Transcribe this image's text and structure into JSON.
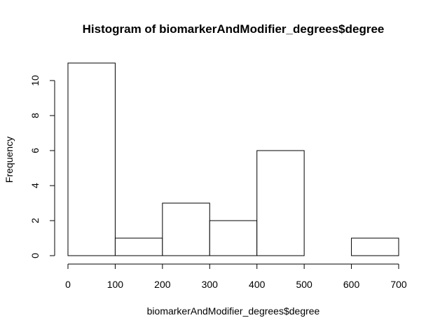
{
  "chart_data": {
    "type": "bar",
    "title": "Histogram of biomarkerAndModifier_degrees$degree",
    "xlabel": "biomarkerAndModifier_degrees$degree",
    "ylabel": "Frequency",
    "bins": [
      {
        "from": 0,
        "to": 100,
        "count": 11
      },
      {
        "from": 100,
        "to": 200,
        "count": 1
      },
      {
        "from": 200,
        "to": 300,
        "count": 3
      },
      {
        "from": 300,
        "to": 400,
        "count": 2
      },
      {
        "from": 400,
        "to": 500,
        "count": 6
      },
      {
        "from": 500,
        "to": 600,
        "count": 0
      },
      {
        "from": 600,
        "to": 700,
        "count": 1
      }
    ],
    "xlim": [
      0,
      700
    ],
    "ylim": [
      0,
      11
    ],
    "x_ticks": [
      0,
      100,
      200,
      300,
      400,
      500,
      600,
      700
    ],
    "y_ticks": [
      0,
      2,
      4,
      6,
      8,
      10
    ],
    "grid": false,
    "colors": {
      "bar_fill": "#ffffff",
      "bar_stroke": "#000000"
    }
  }
}
